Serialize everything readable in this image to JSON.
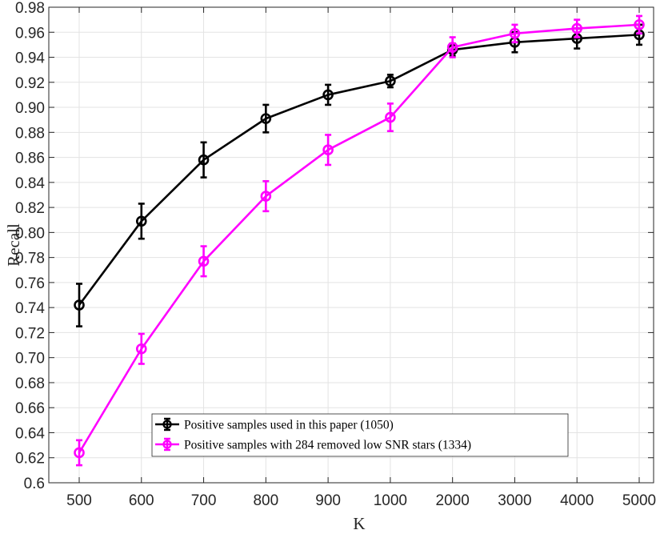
{
  "chart_data": {
    "type": "line",
    "title": "",
    "xlabel": "K",
    "ylabel": "Recall",
    "categories": [
      "500",
      "600",
      "700",
      "800",
      "900",
      "1000",
      "2000",
      "3000",
      "4000",
      "5000"
    ],
    "ylim": [
      0.6,
      0.98
    ],
    "yticks": [
      "0.6",
      "0.62",
      "0.64",
      "0.66",
      "0.68",
      "0.70",
      "0.72",
      "0.74",
      "0.76",
      "0.78",
      "0.80",
      "0.82",
      "0.84",
      "0.86",
      "0.88",
      "0.90",
      "0.92",
      "0.94",
      "0.96",
      "0.98"
    ],
    "grid": true,
    "legend_position": "bottom-center",
    "series": [
      {
        "name": "Positive samples used in this paper (1050)",
        "color": "#000000",
        "marker": "circle",
        "values": [
          0.742,
          0.809,
          0.858,
          0.891,
          0.91,
          0.921,
          0.946,
          0.952,
          0.955,
          0.958
        ],
        "errors": [
          0.017,
          0.014,
          0.014,
          0.011,
          0.008,
          0.005,
          0.005,
          0.008,
          0.008,
          0.008
        ]
      },
      {
        "name": "Positive samples with 284 removed low SNR stars (1334)",
        "color": "#ff00ff",
        "marker": "circle",
        "values": [
          0.624,
          0.707,
          0.777,
          0.829,
          0.866,
          0.892,
          0.948,
          0.959,
          0.963,
          0.966
        ],
        "errors": [
          0.01,
          0.012,
          0.012,
          0.012,
          0.012,
          0.011,
          0.008,
          0.007,
          0.007,
          0.007
        ]
      }
    ]
  }
}
